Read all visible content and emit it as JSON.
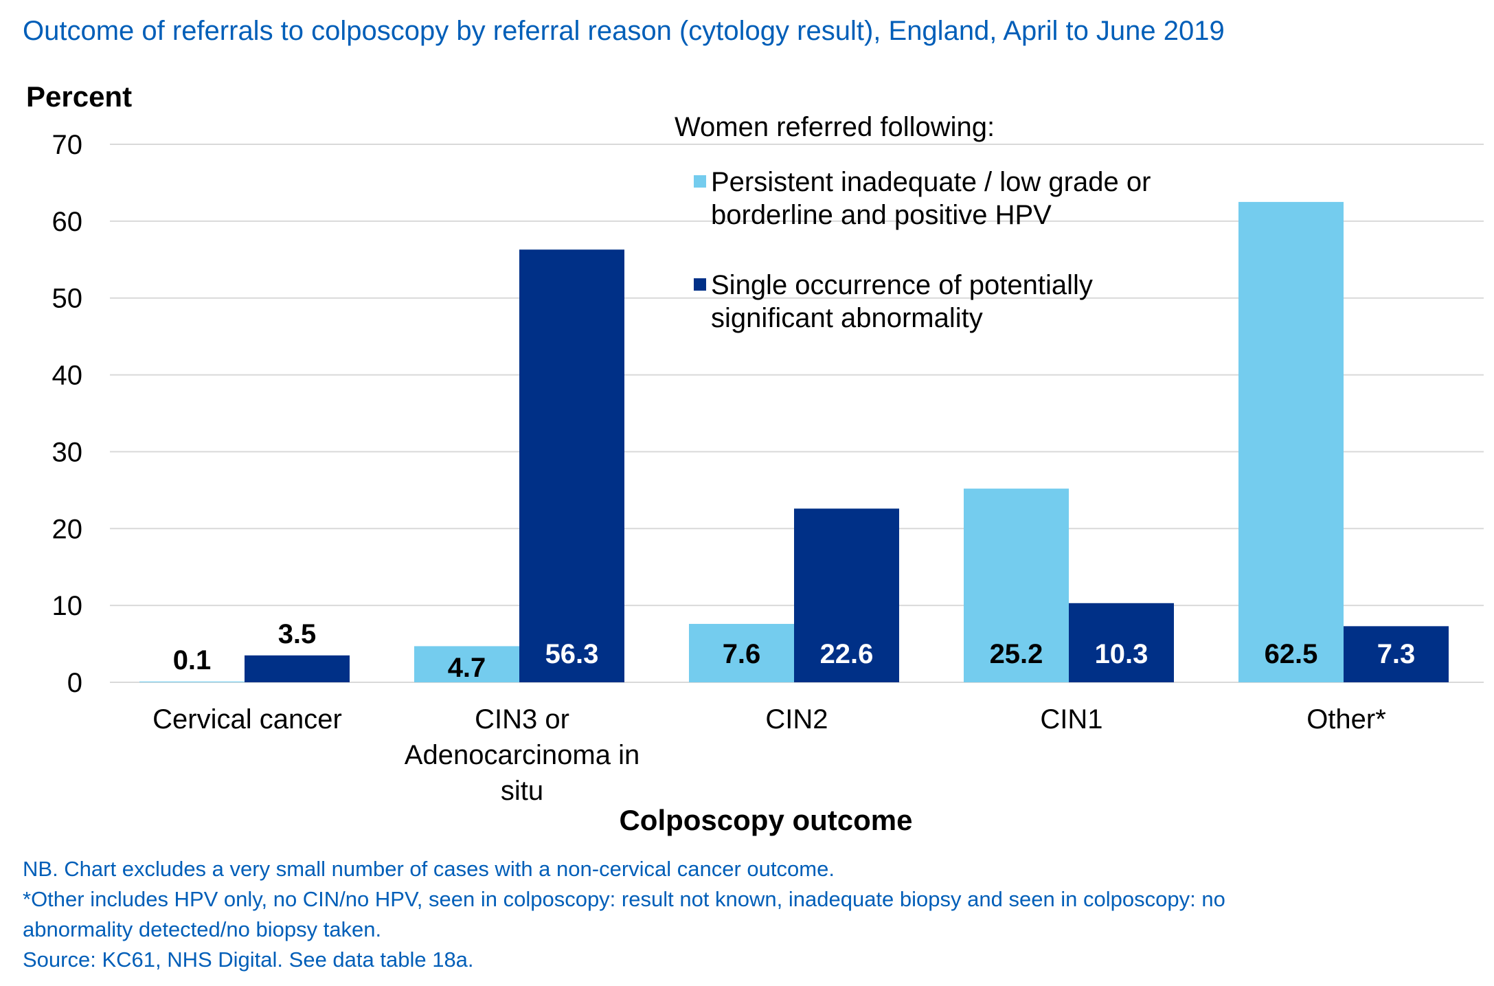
{
  "chart_data": {
    "type": "bar",
    "title": "Outcome of referrals to colposcopy by referral reason (cytology result), England, April to June 2019",
    "ylabel": "Percent",
    "xlabel": "Colposcopy outcome",
    "ylim": [
      0,
      70
    ],
    "yticks": [
      "0",
      "10",
      "20",
      "30",
      "40",
      "50",
      "60",
      "70"
    ],
    "grid": true,
    "categories": [
      [
        "Cervical cancer"
      ],
      [
        "CIN3 or",
        "Adenocarcinoma in",
        "situ"
      ],
      [
        "CIN2"
      ],
      [
        "CIN1"
      ],
      [
        "Other*"
      ]
    ],
    "legend_title": "Women referred following:",
    "legend_position": "top-right",
    "series": [
      {
        "name_lines": [
          "Persistent inadequate / low grade or",
          "borderline and positive HPV"
        ],
        "values": [
          0.1,
          4.7,
          7.6,
          25.2,
          62.5
        ],
        "labels": [
          "0.1",
          "4.7",
          "7.6",
          "25.2",
          "62.5"
        ],
        "color": "#74ccee"
      },
      {
        "name_lines": [
          "Single occurrence of potentially",
          "significant abnormality"
        ],
        "values": [
          3.5,
          56.3,
          22.6,
          10.3,
          7.3
        ],
        "labels": [
          "3.5",
          "56.3",
          "22.6",
          "10.3",
          "7.3"
        ],
        "color": "#003087"
      }
    ]
  },
  "notes": [
    "NB. Chart excludes a very small number of cases with a non-cervical cancer outcome.",
    "*Other includes HPV only, no CIN/no HPV, seen in colposcopy: result not known, inadequate biopsy and seen in colposcopy: no",
    "abnormality detected/no biopsy taken.",
    "Source: KC61, NHS Digital.  See data table 18a."
  ],
  "colors": {
    "title": "#005eb8",
    "text": "#000000",
    "grid": "#d9d9d9",
    "label_light": "#ffffff"
  }
}
